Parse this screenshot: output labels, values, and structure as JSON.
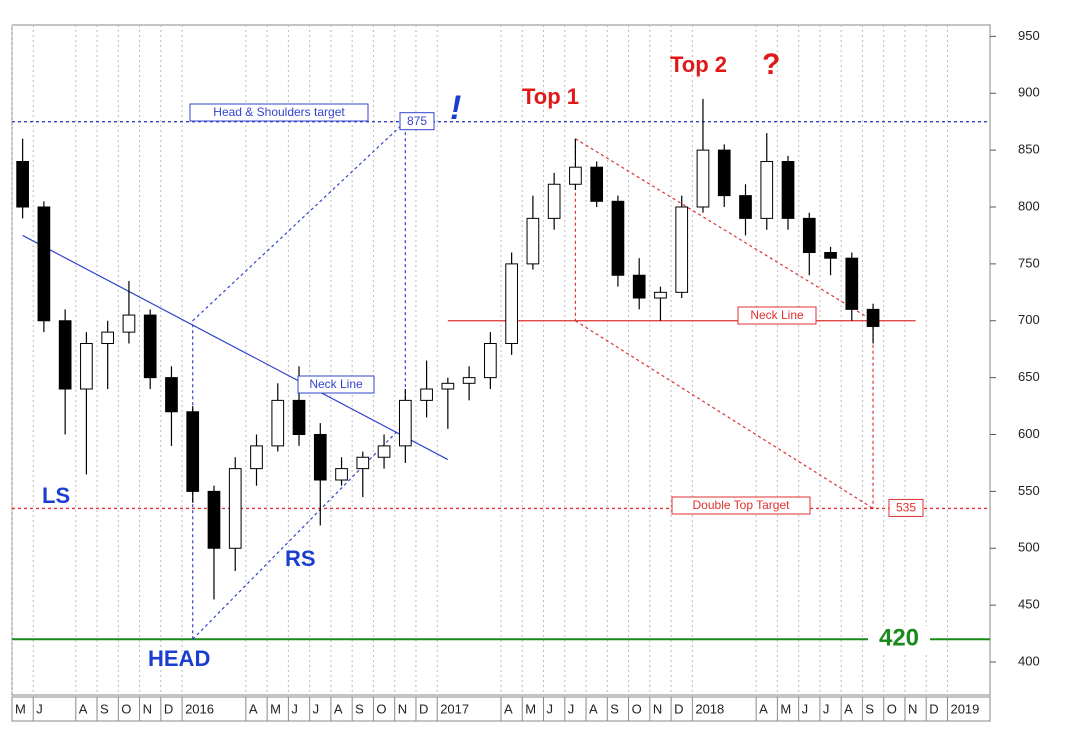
{
  "chart_data": {
    "type": "candlestick",
    "x": [
      "2015-05",
      "2015-06",
      "2015-07",
      "2015-08",
      "2015-09",
      "2015-10",
      "2015-11",
      "2015-12",
      "2016-01",
      "2016-02",
      "2016-03",
      "2016-04",
      "2016-05",
      "2016-06",
      "2016-07",
      "2016-08",
      "2016-09",
      "2016-10",
      "2016-11",
      "2016-12",
      "2017-01",
      "2017-02",
      "2017-03",
      "2017-04",
      "2017-05",
      "2017-06",
      "2017-07",
      "2017-08",
      "2017-09",
      "2017-10",
      "2017-11",
      "2017-12",
      "2018-01",
      "2018-02",
      "2018-03",
      "2018-04",
      "2018-05",
      "2018-06",
      "2018-07",
      "2018-08",
      "2018-09"
    ],
    "open": [
      840,
      800,
      700,
      640,
      680,
      690,
      705,
      650,
      620,
      550,
      500,
      570,
      590,
      630,
      600,
      560,
      570,
      580,
      590,
      630,
      640,
      645,
      650,
      680,
      750,
      790,
      820,
      835,
      805,
      740,
      720,
      725,
      800,
      850,
      810,
      790,
      840,
      790,
      760,
      755,
      710
    ],
    "high": [
      860,
      805,
      710,
      690,
      700,
      735,
      710,
      660,
      625,
      555,
      580,
      600,
      645,
      660,
      610,
      580,
      585,
      600,
      640,
      665,
      650,
      660,
      690,
      760,
      810,
      830,
      860,
      840,
      810,
      755,
      730,
      810,
      895,
      855,
      820,
      865,
      845,
      795,
      765,
      760,
      715
    ],
    "low": [
      790,
      690,
      600,
      565,
      640,
      680,
      640,
      590,
      540,
      455,
      480,
      555,
      585,
      590,
      520,
      555,
      545,
      570,
      575,
      615,
      605,
      630,
      640,
      670,
      745,
      780,
      815,
      800,
      730,
      710,
      700,
      720,
      795,
      800,
      775,
      780,
      780,
      740,
      740,
      700,
      680
    ],
    "close": [
      800,
      700,
      640,
      680,
      690,
      705,
      650,
      620,
      550,
      500,
      570,
      590,
      630,
      600,
      560,
      570,
      580,
      590,
      630,
      640,
      645,
      650,
      680,
      750,
      790,
      820,
      835,
      805,
      740,
      720,
      725,
      800,
      850,
      810,
      790,
      840,
      790,
      760,
      755,
      710,
      695
    ],
    "up_color": "#ffffff",
    "down_color": "#000000",
    "ylim": [
      371,
      960
    ],
    "yticks": [
      400,
      450,
      500,
      550,
      600,
      650,
      700,
      750,
      800,
      850,
      900,
      950
    ],
    "xlim": [
      "2015-05",
      "2019-02"
    ],
    "xticks": [
      {
        "value": "2015-05",
        "label": "M"
      },
      {
        "value": "2015-06",
        "label": "J"
      },
      {
        "value": "2015-08",
        "label": "A"
      },
      {
        "value": "2015-09",
        "label": "S"
      },
      {
        "value": "2015-10",
        "label": "O"
      },
      {
        "value": "2015-11",
        "label": "N"
      },
      {
        "value": "2015-12",
        "label": "D"
      },
      {
        "value": "2016-01",
        "label": "2016"
      },
      {
        "value": "2016-04",
        "label": "A"
      },
      {
        "value": "2016-05",
        "label": "M"
      },
      {
        "value": "2016-06",
        "label": "J"
      },
      {
        "value": "2016-07",
        "label": "J"
      },
      {
        "value": "2016-08",
        "label": "A"
      },
      {
        "value": "2016-09",
        "label": "S"
      },
      {
        "value": "2016-10",
        "label": "O"
      },
      {
        "value": "2016-11",
        "label": "N"
      },
      {
        "value": "2016-12",
        "label": "D"
      },
      {
        "value": "2017-01",
        "label": "2017"
      },
      {
        "value": "2017-04",
        "label": "A"
      },
      {
        "value": "2017-05",
        "label": "M"
      },
      {
        "value": "2017-06",
        "label": "J"
      },
      {
        "value": "2017-07",
        "label": "J"
      },
      {
        "value": "2017-08",
        "label": "A"
      },
      {
        "value": "2017-09",
        "label": "S"
      },
      {
        "value": "2017-10",
        "label": "O"
      },
      {
        "value": "2017-11",
        "label": "N"
      },
      {
        "value": "2017-12",
        "label": "D"
      },
      {
        "value": "2018-01",
        "label": "2018"
      },
      {
        "value": "2018-04",
        "label": "A"
      },
      {
        "value": "2018-05",
        "label": "M"
      },
      {
        "value": "2018-06",
        "label": "J"
      },
      {
        "value": "2018-07",
        "label": "J"
      },
      {
        "value": "2018-08",
        "label": "A"
      },
      {
        "value": "2018-09",
        "label": "S"
      },
      {
        "value": "2018-10",
        "label": "O"
      },
      {
        "value": "2018-11",
        "label": "N"
      },
      {
        "value": "2018-12",
        "label": "D"
      },
      {
        "value": "2019-01",
        "label": "2019"
      }
    ],
    "grid": true,
    "levels": [
      {
        "value": 875,
        "color": "#3344cc",
        "style": "dotted",
        "label": "875"
      },
      {
        "value": 535,
        "color": "#e03030",
        "style": "dotted",
        "label": "535"
      },
      {
        "value": 420,
        "color": "#1a8a1a",
        "style": "solid",
        "label": "420"
      }
    ],
    "trendlines": [
      {
        "color": "#3344cc",
        "style": "solid",
        "from": {
          "x": "2015-05",
          "y": 775
        },
        "to": {
          "x": "2017-01",
          "y": 578
        }
      },
      {
        "color": "#3344cc",
        "style": "dotted",
        "from": {
          "x": "2016-01",
          "y": 420
        },
        "to": {
          "x": "2016-01",
          "y": 700
        }
      },
      {
        "color": "#3344cc",
        "style": "dotted",
        "from": {
          "x": "2016-01",
          "y": 700
        },
        "to": {
          "x": "2016-11",
          "y": 875
        }
      },
      {
        "color": "#3344cc",
        "style": "dotted",
        "from": {
          "x": "2016-01",
          "y": 420
        },
        "to": {
          "x": "2016-11",
          "y": 610
        }
      },
      {
        "color": "#3344cc",
        "style": "dotted",
        "from": {
          "x": "2016-11",
          "y": 610
        },
        "to": {
          "x": "2016-11",
          "y": 875
        }
      },
      {
        "color": "#e03030",
        "style": "solid",
        "from": {
          "x": "2017-01",
          "y": 700
        },
        "to": {
          "x": "2018-11",
          "y": 700
        }
      },
      {
        "color": "#e03030",
        "style": "dotted",
        "from": {
          "x": "2017-07",
          "y": 860
        },
        "to": {
          "x": "2018-09",
          "y": 700
        }
      },
      {
        "color": "#e03030",
        "style": "dotted",
        "from": {
          "x": "2017-07",
          "y": 860
        },
        "to": {
          "x": "2017-07",
          "y": 700
        }
      },
      {
        "color": "#e03030",
        "style": "dotted",
        "from": {
          "x": "2017-07",
          "y": 700
        },
        "to": {
          "x": "2018-09",
          "y": 535
        }
      },
      {
        "color": "#e03030",
        "style": "dotted",
        "from": {
          "x": "2018-09",
          "y": 700
        },
        "to": {
          "x": "2018-09",
          "y": 535
        }
      }
    ],
    "annotations": {
      "hs_target": "Head & Shoulders target",
      "hs_neck": "Neck Line",
      "dt_neck": "Neck Line",
      "dt_target": "Double Top Target",
      "ls": "LS",
      "head": "HEAD",
      "rs": "RS",
      "top1": "Top 1",
      "top2": "Top 2",
      "question": "?",
      "exclaim": "!"
    }
  }
}
